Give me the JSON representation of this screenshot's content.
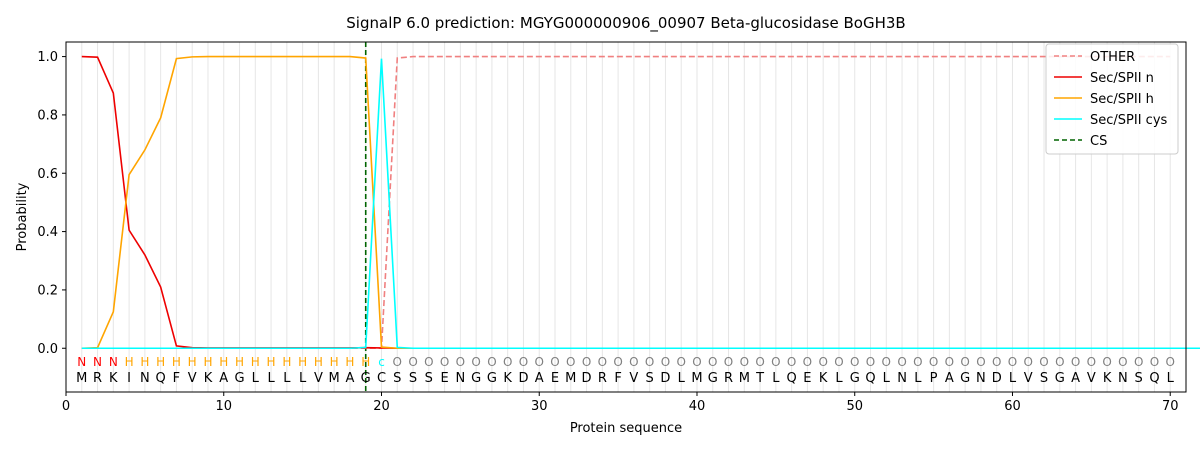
{
  "chart_data": {
    "type": "line",
    "title": "SignalP 6.0 prediction: MGYG000000906_00907 Beta-glucosidase BoGH3B",
    "xlabel": "Protein sequence",
    "ylabel": "Probability",
    "xlim": [
      0,
      71
    ],
    "ylim": [
      -0.15,
      1.05
    ],
    "xticks": [
      0,
      10,
      20,
      30,
      40,
      50,
      60,
      70
    ],
    "yticks": [
      0.0,
      0.2,
      0.4,
      0.6,
      0.8,
      1.0
    ],
    "xtick_labels": [
      "0",
      "10",
      "20",
      "30",
      "40",
      "50",
      "60",
      "70"
    ],
    "ytick_labels": [
      "0.0",
      "0.2",
      "0.4",
      "0.6",
      "0.8",
      "1.0"
    ],
    "grid": "vertical lines at each residue position",
    "legend_position": "top-right",
    "sequence": [
      "M",
      "R",
      "K",
      "I",
      "N",
      "Q",
      "F",
      "V",
      "K",
      "A",
      "G",
      "L",
      "L",
      "L",
      "L",
      "V",
      "M",
      "A",
      "G",
      "C",
      "S",
      "S",
      "S",
      "E",
      "N",
      "G",
      "G",
      "K",
      "D",
      "A",
      "E",
      "M",
      "D",
      "R",
      "F",
      "V",
      "S",
      "D",
      "L",
      "M",
      "G",
      "R",
      "M",
      "T",
      "L",
      "Q",
      "E",
      "K",
      "L",
      "G",
      "Q",
      "L",
      "N",
      "L",
      "P",
      "A",
      "G",
      "N",
      "D",
      "L",
      "V",
      "S",
      "G",
      "A",
      "V",
      "K",
      "N",
      "S",
      "Q",
      "L"
    ],
    "annotation": [
      "N",
      "N",
      "N",
      "H",
      "H",
      "H",
      "H",
      "H",
      "H",
      "H",
      "H",
      "H",
      "H",
      "H",
      "H",
      "H",
      "H",
      "H",
      "H",
      "c",
      "O",
      "O",
      "O",
      "O",
      "O",
      "O",
      "O",
      "O",
      "O",
      "O",
      "O",
      "O",
      "O",
      "O",
      "O",
      "O",
      "O",
      "O",
      "O",
      "O",
      "O",
      "O",
      "O",
      "O",
      "O",
      "O",
      "O",
      "O",
      "O",
      "O",
      "O",
      "O",
      "O",
      "O",
      "O",
      "O",
      "O",
      "O",
      "O",
      "O",
      "O",
      "O",
      "O",
      "O",
      "O",
      "O",
      "O",
      "O",
      "O",
      "O"
    ],
    "annotation_colors": {
      "N": "#ff0000",
      "H": "#ffa500",
      "c": "#00ffff",
      "O": "#808080"
    },
    "cs_position": 19,
    "series": [
      {
        "name": "OTHER",
        "color": "#f08080",
        "style": "dashed",
        "values": [
          0,
          0,
          0,
          0,
          0,
          0,
          0,
          0,
          0,
          0,
          0,
          0,
          0,
          0,
          0,
          0,
          0,
          0,
          0,
          0,
          0.995,
          1,
          1,
          1,
          1,
          1,
          1,
          1,
          1,
          1,
          1,
          1,
          1,
          1,
          1,
          1,
          1,
          1,
          1,
          1,
          1,
          1,
          1,
          1,
          1,
          1,
          1,
          1,
          1,
          1,
          1,
          1,
          1,
          1,
          1,
          1,
          1,
          1,
          1,
          1,
          1,
          1,
          1,
          1,
          1,
          1,
          1,
          1,
          1,
          1
        ]
      },
      {
        "name": "Sec/SPII n",
        "color": "#ee0000",
        "style": "solid",
        "values": [
          1.0,
          0.998,
          0.875,
          0.405,
          0.32,
          0.21,
          0.008,
          0.002,
          0.001,
          0.001,
          0.001,
          0.001,
          0.001,
          0.001,
          0.001,
          0.001,
          0.001,
          0.001,
          0.002,
          0.001,
          0,
          0,
          0,
          0,
          0,
          0,
          0,
          0,
          0,
          0,
          0,
          0,
          0,
          0,
          0,
          0,
          0,
          0,
          0,
          0,
          0,
          0,
          0,
          0,
          0,
          0,
          0,
          0,
          0,
          0,
          0,
          0,
          0,
          0,
          0,
          0,
          0,
          0,
          0,
          0,
          0,
          0,
          0,
          0,
          0,
          0,
          0,
          0,
          0,
          0
        ]
      },
      {
        "name": "Sec/SPII h",
        "color": "#ffa500",
        "style": "solid",
        "values": [
          0,
          0.002,
          0.125,
          0.595,
          0.68,
          0.79,
          0.993,
          0.999,
          1,
          1,
          1,
          1,
          1,
          1,
          1,
          1,
          1,
          1,
          0.995,
          0.004,
          0,
          0,
          0,
          0,
          0,
          0,
          0,
          0,
          0,
          0,
          0,
          0,
          0,
          0,
          0,
          0,
          0,
          0,
          0,
          0,
          0,
          0,
          0,
          0,
          0,
          0,
          0,
          0,
          0,
          0,
          0,
          0,
          0,
          0,
          0,
          0,
          0,
          0,
          0,
          0,
          0,
          0,
          0,
          0,
          0,
          0,
          0,
          0,
          0,
          0
        ]
      },
      {
        "name": "Sec/SPII cys",
        "color": "#00ffff",
        "style": "solid",
        "values": [
          0,
          0,
          0,
          0,
          0,
          0,
          0,
          0,
          0,
          0,
          0,
          0,
          0,
          0,
          0,
          0,
          0,
          0,
          0.003,
          0.993,
          0.003,
          0,
          0,
          0,
          0,
          0,
          0,
          0,
          0,
          0,
          0,
          0,
          0,
          0,
          0,
          0,
          0,
          0,
          0,
          0,
          0,
          0,
          0,
          0,
          0,
          0,
          0,
          0,
          0,
          0,
          0,
          0,
          0,
          0,
          0,
          0,
          0,
          0,
          0,
          0,
          0,
          0,
          0,
          0,
          0,
          0,
          0,
          0,
          0,
          0,
          0,
          0
        ]
      },
      {
        "name": "CS",
        "color": "#006400",
        "style": "dashed",
        "values": []
      }
    ]
  }
}
